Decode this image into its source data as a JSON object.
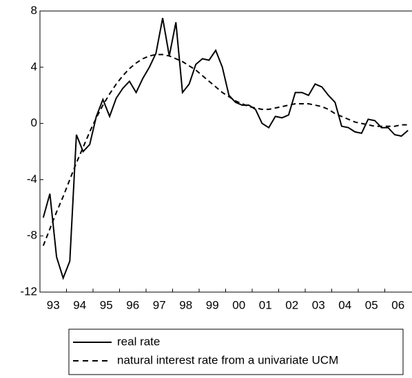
{
  "chart_data": {
    "type": "line",
    "categories": [
      null,
      "93",
      null,
      null,
      null,
      "94",
      null,
      null,
      null,
      "95",
      null,
      null,
      null,
      "96",
      null,
      null,
      null,
      "97",
      null,
      null,
      null,
      "98",
      null,
      null,
      null,
      "99",
      null,
      null,
      null,
      "00",
      null,
      null,
      null,
      "01",
      null,
      null,
      null,
      "02",
      null,
      null,
      null,
      "03",
      null,
      null,
      null,
      "04",
      null,
      null,
      null,
      "05",
      null,
      null,
      null,
      "06",
      null,
      null
    ],
    "series": [
      {
        "name": "real rate",
        "color": "#000000",
        "dash": "solid",
        "values": [
          -6.7,
          -5,
          -9.5,
          -11,
          -9.8,
          -0.8,
          -2,
          -1.5,
          0.5,
          1.7,
          0.5,
          1.8,
          2.5,
          3,
          2.2,
          3.2,
          4,
          5,
          7.5,
          4.8,
          7.2,
          2.2,
          2.8,
          4.2,
          4.6,
          4.5,
          5.2,
          4,
          2,
          1.5,
          1.3,
          1.3,
          1,
          0,
          -0.3,
          0.5,
          0.4,
          0.6,
          2.2,
          2.2,
          2,
          2.8,
          2.6,
          2,
          1.5,
          -0.2,
          -0.3,
          -0.6,
          -0.7,
          0.3,
          0.2,
          -0.3,
          -0.3,
          -0.8,
          -0.9,
          -0.5
        ]
      },
      {
        "name": "natural interest rate from a univariate UCM",
        "color": "#000000",
        "dash": "dashed",
        "values": [
          -8.7,
          -7.5,
          -6.3,
          -5.2,
          -4,
          -2.8,
          -1.7,
          -0.6,
          0.4,
          1.3,
          2.1,
          2.8,
          3.4,
          3.9,
          4.3,
          4.6,
          4.8,
          4.9,
          4.9,
          4.8,
          4.6,
          4.4,
          4.1,
          3.8,
          3.4,
          3,
          2.6,
          2.2,
          1.9,
          1.6,
          1.4,
          1.2,
          1.1,
          1,
          1,
          1.1,
          1.2,
          1.3,
          1.4,
          1.4,
          1.4,
          1.3,
          1.2,
          1,
          0.7,
          0.5,
          0.3,
          0.1,
          0,
          -0.1,
          -0.2,
          -0.2,
          -0.2,
          -0.2,
          -0.1,
          -0.1
        ]
      }
    ],
    "ylim": [
      -12,
      8
    ],
    "yticks": [
      -12,
      -8,
      -4,
      0,
      4,
      8
    ],
    "legend": "bottom"
  }
}
